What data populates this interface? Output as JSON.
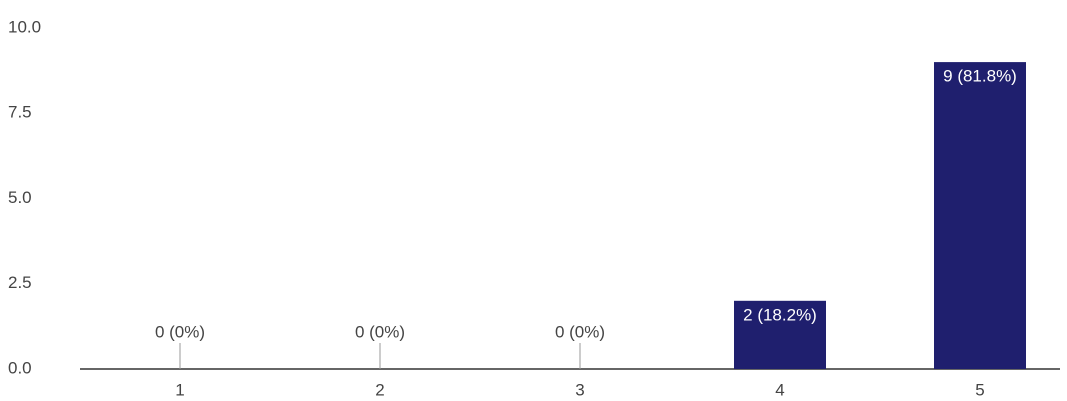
{
  "chart_data": {
    "type": "bar",
    "categories": [
      "1",
      "2",
      "3",
      "4",
      "5"
    ],
    "values": [
      0,
      0,
      0,
      2,
      9
    ],
    "value_labels": [
      "0 (0%)",
      "0 (0%)",
      "0 (0%)",
      "2 (18.2%)",
      "9 (81.8%)"
    ],
    "color": "#1f1f6e",
    "ylim": [
      0,
      10
    ],
    "yticks": [
      {
        "value": 0,
        "label": "0.0"
      },
      2.5,
      {
        "value": 5,
        "label": "5.0"
      },
      7.5,
      {
        "value": 10,
        "label": "10.0"
      }
    ]
  }
}
